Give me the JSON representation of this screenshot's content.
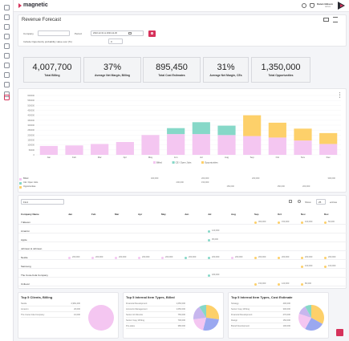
{
  "brand": "magnetic",
  "user": {
    "name": "Karen Gibson",
    "role": "Admin"
  },
  "page_title": "Revenue Forecast",
  "filters": {
    "company_label": "Company",
    "company_value": "",
    "period_label": "Period",
    "period_value": "2022-12-31 to 2023-11-30",
    "include_label": "Include Opportunity probability value over (%)",
    "include_value": "0"
  },
  "kpis": [
    {
      "value": "4,007,700",
      "label": "Total Billing"
    },
    {
      "value": "37%",
      "label": "Average Net Margin, Billing"
    },
    {
      "value": "895,450",
      "label": "Total Cost Estimates"
    },
    {
      "value": "31%",
      "label": "Average Net Margin, CEs"
    },
    {
      "value": "1,350,000",
      "label": "Total Opportunities"
    }
  ],
  "colors": {
    "billed": "#f4c6f1",
    "ce_open": "#86d8c8",
    "opportunities": "#fdd06a",
    "accent": "#d6325b"
  },
  "chart_data": {
    "type": "bar",
    "stacked": true,
    "categories": [
      "Jan",
      "Feb",
      "Mar",
      "Apr",
      "May",
      "Jun",
      "Jul",
      "Aug",
      "Sep",
      "Oct",
      "Nov",
      "Dec"
    ],
    "yticks": [
      "600000",
      "550000",
      "500000",
      "450000",
      "400000",
      "350000",
      "300000",
      "250000",
      "200000",
      "150000",
      "100000",
      "50000",
      "0"
    ],
    "ylim": [
      0,
      600000
    ],
    "series": [
      {
        "name": "Billed",
        "values": [
          90000,
          95000,
          110000,
          130000,
          200000,
          210000,
          210000,
          200000,
          190000,
          175000,
          145000,
          110000
        ]
      },
      {
        "name": "CE / Open Jobs",
        "values": [
          0,
          0,
          0,
          0,
          0,
          60000,
          120000,
          95000,
          0,
          0,
          0,
          0
        ]
      },
      {
        "name": "Opportunities",
        "values": [
          0,
          0,
          0,
          0,
          0,
          0,
          0,
          0,
          210000,
          150000,
          120000,
          110000
        ]
      }
    ],
    "legend": "bottom",
    "grid": true
  },
  "summary_rows": [
    {
      "label": "Billed",
      "values": [
        "",
        "",
        "",
        "",
        "400,000",
        "",
        "200,000",
        "",
        "200,000",
        "",
        "",
        "300,000"
      ]
    },
    {
      "label": "CE / Open Jobs",
      "values": [
        "",
        "",
        "",
        "",
        "",
        "200,000",
        "150,000",
        "",
        "",
        "",
        "",
        ""
      ]
    },
    {
      "label": "Opportunities",
      "values": [
        "",
        "",
        "",
        "",
        "",
        "",
        "",
        "150,000",
        "",
        "150,000",
        "200,000",
        ""
      ]
    }
  ],
  "table": {
    "find_placeholder": "Find",
    "show_label": "Show",
    "show_value": "25",
    "entries_label": "entries",
    "headers": [
      "Company Name",
      "Jan",
      "Feb",
      "Mar",
      "Apr",
      "May",
      "Jun",
      "Jul",
      "Aug",
      "Sep",
      "Oct",
      "Nov",
      "Dec"
    ],
    "rows": [
      {
        "name": "7-Eleven",
        "vals": {
          "Sep": "300,000",
          "Oct": "150,000",
          "Nov": "100,000",
          "Dec": "50,000"
        }
      },
      {
        "name": "Amazon",
        "vals": {
          "Jul": "120,000"
        }
      },
      {
        "name": "Apple",
        "vals": {
          "Jul": "95,000"
        }
      },
      {
        "name": "Johnson & Johnson",
        "vals": {}
      },
      {
        "name": "Nestle",
        "vals": {
          "Jan": "200,000",
          "Feb": "200,000",
          "Mar": "200,000",
          "Apr": "200,000",
          "May": "200,000",
          "Jun": "200,000",
          "Jul": "200,000",
          "Aug": "200,000",
          "Sep": "200,000",
          "Oct": "200,000",
          "Nov": "200,000",
          "Dec": "200,000"
        }
      },
      {
        "name": "Samsung",
        "vals": {
          "Nov": "100,000",
          "Dec": "100,000"
        }
      },
      {
        "name": "The Coca-Cola Company",
        "vals": {
          "Jul": "180,000"
        }
      },
      {
        "name": "Unilever",
        "vals": {
          "Sep": "150,000",
          "Oct": "120,000",
          "Nov": "80,000"
        }
      }
    ]
  },
  "panels": [
    {
      "title": "Top 5 Clients, Billing",
      "rows": [
        [
          "Nestle",
          "2,984,400"
        ],
        [
          "Amazon",
          "20,000"
        ],
        [
          "The Coca-Cola Company",
          "10,000"
        ]
      ],
      "pie": [
        {
          "color": "#f4c6f1",
          "value": 100
        }
      ]
    },
    {
      "title": "Top 5 Internal Item Types, Billed",
      "rows": [
        [
          "Financial Development",
          "1,050,000"
        ],
        [
          "Accounts Management",
          "1,050,000"
        ],
        [
          "Senior Art Director",
          "750,000"
        ],
        [
          "Senior Copy Writing",
          "700,000"
        ],
        [
          "Pre-sales",
          "380,000"
        ]
      ],
      "pie": [
        {
          "color": "#fdd06a",
          "value": 27
        },
        {
          "color": "#9aa8f0",
          "value": 27
        },
        {
          "color": "#f4c6f1",
          "value": 19
        },
        {
          "color": "#c7b6ee",
          "value": 18
        },
        {
          "color": "#86d8c8",
          "value": 9
        }
      ]
    },
    {
      "title": "Top 5 Internal Item Types, Cost Estimate",
      "rows": [
        [
          "Strategy",
          "400,000"
        ],
        [
          "Senior Copy Writing",
          "300,000"
        ],
        [
          "Financial Development",
          "270,000"
        ],
        [
          "Design",
          "150,000"
        ],
        [
          "Brand Development",
          "100,000"
        ]
      ],
      "pie": [
        {
          "color": "#fdd06a",
          "value": 33
        },
        {
          "color": "#9aa8f0",
          "value": 25
        },
        {
          "color": "#f4c6f1",
          "value": 22
        },
        {
          "color": "#c7b6ee",
          "value": 12
        },
        {
          "color": "#86d8c8",
          "value": 8
        }
      ]
    }
  ]
}
